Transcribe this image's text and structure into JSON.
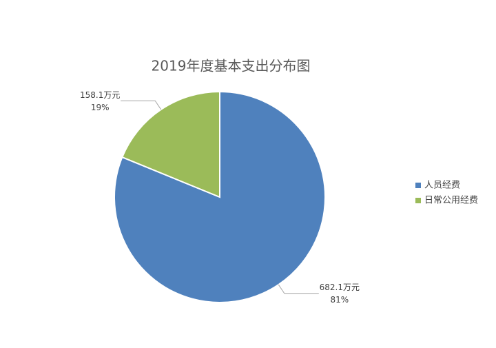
{
  "chart_data": {
    "type": "pie",
    "title": "2019年度基本支出分布图",
    "categories": [
      "人员经费",
      "日常公用经费"
    ],
    "values": [
      682.1,
      158.1
    ],
    "value_labels": [
      "682.1万元",
      "158.1万元"
    ],
    "percents": [
      81,
      19
    ],
    "percent_labels": [
      "81%",
      "19%"
    ],
    "colors": [
      "#4f81bd",
      "#9bbb59"
    ],
    "legend": "right"
  }
}
